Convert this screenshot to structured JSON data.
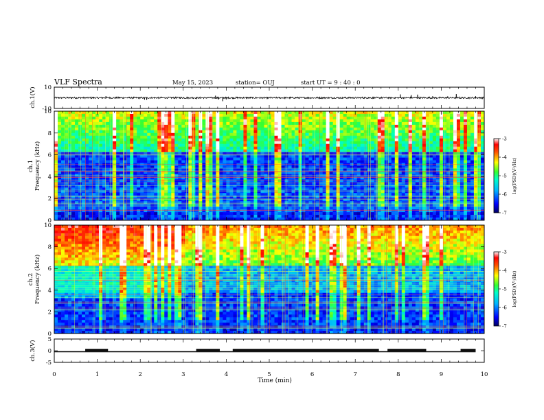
{
  "header": {
    "title": "VLF Spectra",
    "date": "May 15, 2023",
    "station": "station= OUJ",
    "start": "start  UT =   9 : 40 : 0"
  },
  "chart_data": [
    {
      "type": "line",
      "ylabel": "ch.1(V)",
      "ylim": [
        -10,
        10
      ],
      "yticks": [
        10,
        -10
      ],
      "xlim": [
        0,
        10
      ],
      "baseline": 0,
      "spikes": [
        {
          "x": 1.2,
          "y": 1.5
        },
        {
          "x": 2.1,
          "y": -1.8
        },
        {
          "x": 2.15,
          "y": -2.0
        },
        {
          "x": 3.0,
          "y": 0.8
        },
        {
          "x": 3.3,
          "y": -1.2
        },
        {
          "x": 3.75,
          "y": 2.0
        },
        {
          "x": 3.82,
          "y": -1.6
        },
        {
          "x": 3.92,
          "y": -3.2
        },
        {
          "x": 4.0,
          "y": -1.5
        },
        {
          "x": 4.95,
          "y": -1.2
        },
        {
          "x": 6.7,
          "y": -0.8
        },
        {
          "x": 7.3,
          "y": 0.9
        },
        {
          "x": 8.05,
          "y": 3.2
        },
        {
          "x": 8.3,
          "y": 2.6
        },
        {
          "x": 8.45,
          "y": 3.0
        },
        {
          "x": 8.8,
          "y": 1.5
        },
        {
          "x": 9.15,
          "y": 1.4
        },
        {
          "x": 9.35,
          "y": 3.5
        },
        {
          "x": 9.8,
          "y": 1.5
        }
      ]
    },
    {
      "type": "heatmap",
      "title": "ch.1",
      "ylabel": "Frequency  (kHz)",
      "ylim": [
        0,
        10
      ],
      "yticks": [
        0,
        2,
        4,
        6,
        8,
        10
      ],
      "xlim": [
        0,
        10
      ],
      "colorbar": {
        "label": "log(PSD)(V²/Hz)",
        "range": [
          -7,
          -3
        ],
        "ticks": [
          -3,
          -4,
          -5,
          -6,
          -7
        ]
      }
    },
    {
      "type": "heatmap",
      "title": "ch.2",
      "ylabel": "Frequency  (kHz)",
      "ylim": [
        0,
        10
      ],
      "yticks": [
        0,
        2,
        4,
        6,
        8,
        10
      ],
      "xlim": [
        0,
        10
      ],
      "colorbar": {
        "label": "log(PSD)(V²/Hz)",
        "range": [
          -7,
          -3
        ],
        "ticks": [
          -3,
          -4,
          -5,
          -6,
          -7
        ]
      }
    },
    {
      "type": "line",
      "ylabel": "ch.3(V)",
      "ylim": [
        -5,
        5
      ],
      "yticks": [
        5,
        0,
        -5
      ],
      "xlim": [
        0,
        10
      ],
      "xlabel": "Time  (min)",
      "xticks": [
        0,
        1,
        2,
        3,
        4,
        5,
        6,
        7,
        8,
        9,
        10
      ],
      "high_segments": [
        [
          0.72,
          1.25
        ],
        [
          3.3,
          3.85
        ],
        [
          4.15,
          7.55
        ],
        [
          7.75,
          8.65
        ],
        [
          9.45,
          9.8
        ]
      ]
    }
  ]
}
